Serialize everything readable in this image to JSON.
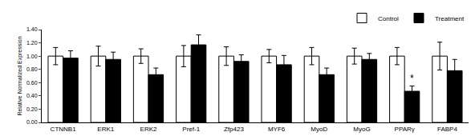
{
  "chart_data": {
    "type": "bar",
    "y_label": "Relative Normalized Expression",
    "categories": [
      "CTNNB1",
      "ERK1",
      "ERK2",
      "Pref-1",
      "Zfp423",
      "MYF6",
      "MyoD",
      "MyoG",
      "PPARγ",
      "FABP4"
    ],
    "series": [
      {
        "name": "Control",
        "color": "#ffffff",
        "values": [
          1.0,
          1.0,
          1.0,
          1.0,
          1.0,
          1.0,
          1.0,
          1.0,
          1.0,
          1.0
        ],
        "errors": [
          0.13,
          0.15,
          0.11,
          0.16,
          0.14,
          0.1,
          0.13,
          0.12,
          0.13,
          0.21
        ]
      },
      {
        "name": "Treatment",
        "color": "#000000",
        "values": [
          0.97,
          0.95,
          0.72,
          1.17,
          0.92,
          0.87,
          0.72,
          0.95,
          0.47,
          0.78
        ],
        "errors": [
          0.11,
          0.11,
          0.1,
          0.15,
          0.1,
          0.14,
          0.1,
          0.09,
          0.08,
          0.17
        ]
      }
    ],
    "ylim": [
      0,
      1.4
    ],
    "yticks": [
      {
        "value": 0,
        "label": "0.00"
      },
      {
        "value": 0.2,
        "label": "0.20"
      },
      {
        "value": 0.4,
        "label": "0.40"
      },
      {
        "value": 0.6,
        "label": "0.60"
      },
      {
        "value": 0.8,
        "label": "0.80"
      },
      {
        "value": 1.0,
        "label": "1.00"
      },
      {
        "value": 1.2,
        "label": "1.20"
      },
      {
        "value": 1.4,
        "label": "1.40"
      }
    ],
    "grid": false,
    "legend": "top right",
    "annotations": [
      {
        "text": "*",
        "category": "PPARγ",
        "series": "Treatment"
      }
    ]
  }
}
